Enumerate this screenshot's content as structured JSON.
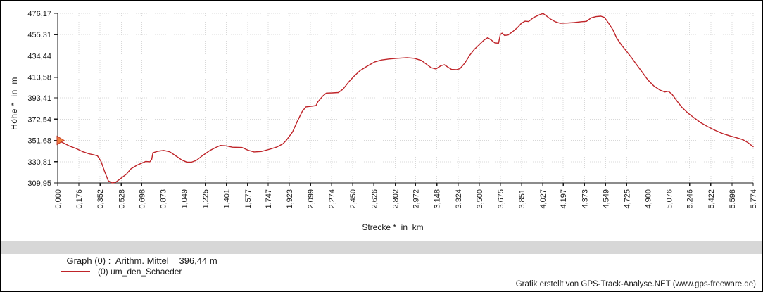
{
  "labels": {
    "y_axis_title": "Höhe *  in  m",
    "x_axis_title": "Strecke *  in  km",
    "stats_band_text": "Graph (0) :  Arithm. Mittel = 396,44 m",
    "legend_label": "(0) um_den_Schaeder",
    "credit_text": "Grafik erstellt von GPS-Track-Analyse.NET (www.gps-freeware.de)"
  },
  "colors": {
    "line": "#bf2429",
    "marker_fill": "#f1803c",
    "marker_stroke": "#c0392b",
    "grid": "#d8d8d8",
    "axis": "#1a1a1a",
    "tick_text": "#1a1a1a",
    "band_bg": "#d7d7d7"
  },
  "chart_data": {
    "type": "line",
    "title": "",
    "xlabel": "Strecke * in km",
    "ylabel": "Höhe * in m",
    "xlim": [
      0.0,
      5.774
    ],
    "ylim": [
      309.95,
      476.17
    ],
    "grid": true,
    "legend_position": "bottom-left",
    "x_ticks": [
      "0,000",
      "0,176",
      "0,352",
      "0,528",
      "0,698",
      "0,873",
      "1,049",
      "1,225",
      "1,401",
      "1,577",
      "1,747",
      "1,923",
      "2,099",
      "2,274",
      "2,450",
      "2,626",
      "2,802",
      "2,972",
      "3,148",
      "3,324",
      "3,500",
      "3,675",
      "3,851",
      "4,027",
      "4,197",
      "4,373",
      "4,549",
      "4,725",
      "4,900",
      "5,076",
      "5,246",
      "5,422",
      "5,598",
      "5,774"
    ],
    "y_ticks": [
      "476,17",
      "455,31",
      "434,44",
      "413,58",
      "393,41",
      "372,54",
      "351,68",
      "330,81",
      "309,95"
    ],
    "annotations": {
      "arithm_mittel": "396,44 m",
      "start_marker_at": [
        0.0,
        351.7
      ]
    },
    "series": [
      {
        "name": "(0) um_den_Schaeder",
        "points": [
          [
            0.0,
            351.7
          ],
          [
            0.05,
            349.0
          ],
          [
            0.1,
            346.0
          ],
          [
            0.15,
            343.8
          ],
          [
            0.21,
            340.5
          ],
          [
            0.26,
            338.5
          ],
          [
            0.3,
            337.5
          ],
          [
            0.33,
            336.5
          ],
          [
            0.36,
            331.0
          ],
          [
            0.39,
            321.0
          ],
          [
            0.42,
            312.0
          ],
          [
            0.45,
            310.0
          ],
          [
            0.48,
            310.5
          ],
          [
            0.52,
            314.0
          ],
          [
            0.57,
            318.5
          ],
          [
            0.61,
            324.0
          ],
          [
            0.66,
            327.5
          ],
          [
            0.7,
            329.5
          ],
          [
            0.73,
            331.0
          ],
          [
            0.765,
            330.7
          ],
          [
            0.78,
            333.0
          ],
          [
            0.79,
            339.5
          ],
          [
            0.83,
            341.0
          ],
          [
            0.88,
            341.8
          ],
          [
            0.93,
            340.5
          ],
          [
            0.98,
            336.5
          ],
          [
            1.03,
            332.5
          ],
          [
            1.07,
            330.4
          ],
          [
            1.11,
            330.3
          ],
          [
            1.15,
            332.0
          ],
          [
            1.2,
            336.5
          ],
          [
            1.26,
            341.5
          ],
          [
            1.31,
            344.6
          ],
          [
            1.35,
            346.7
          ],
          [
            1.4,
            346.3
          ],
          [
            1.45,
            345.0
          ],
          [
            1.53,
            344.7
          ],
          [
            1.58,
            342.0
          ],
          [
            1.63,
            340.4
          ],
          [
            1.69,
            340.8
          ],
          [
            1.76,
            343.0
          ],
          [
            1.82,
            345.2
          ],
          [
            1.87,
            348.3
          ],
          [
            1.9,
            352.0
          ],
          [
            1.95,
            360.0
          ],
          [
            1.99,
            370.5
          ],
          [
            2.03,
            380.0
          ],
          [
            2.06,
            384.5
          ],
          [
            2.11,
            385.2
          ],
          [
            2.145,
            385.8
          ],
          [
            2.16,
            389.5
          ],
          [
            2.2,
            395.0
          ],
          [
            2.23,
            398.0
          ],
          [
            2.28,
            398.2
          ],
          [
            2.33,
            398.6
          ],
          [
            2.37,
            402.0
          ],
          [
            2.42,
            409.5
          ],
          [
            2.46,
            414.5
          ],
          [
            2.51,
            420.0
          ],
          [
            2.57,
            424.5
          ],
          [
            2.63,
            428.5
          ],
          [
            2.69,
            430.5
          ],
          [
            2.75,
            431.5
          ],
          [
            2.82,
            432.2
          ],
          [
            2.9,
            432.8
          ],
          [
            2.96,
            432.2
          ],
          [
            3.02,
            430.0
          ],
          [
            3.06,
            426.5
          ],
          [
            3.1,
            423.0
          ],
          [
            3.14,
            421.7
          ],
          [
            3.18,
            424.8
          ],
          [
            3.21,
            425.8
          ],
          [
            3.24,
            423.5
          ],
          [
            3.27,
            421.3
          ],
          [
            3.31,
            421.0
          ],
          [
            3.34,
            422.0
          ],
          [
            3.38,
            427.5
          ],
          [
            3.42,
            435.0
          ],
          [
            3.46,
            441.0
          ],
          [
            3.5,
            445.5
          ],
          [
            3.54,
            450.0
          ],
          [
            3.57,
            452.3
          ],
          [
            3.6,
            450.0
          ],
          [
            3.63,
            447.2
          ],
          [
            3.66,
            447.0
          ],
          [
            3.675,
            455.5
          ],
          [
            3.69,
            456.8
          ],
          [
            3.71,
            454.5
          ],
          [
            3.74,
            455.0
          ],
          [
            3.78,
            458.5
          ],
          [
            3.82,
            462.5
          ],
          [
            3.85,
            466.5
          ],
          [
            3.88,
            468.5
          ],
          [
            3.91,
            468.2
          ],
          [
            3.95,
            472.0
          ],
          [
            4.0,
            474.8
          ],
          [
            4.03,
            476.0
          ],
          [
            4.06,
            473.5
          ],
          [
            4.09,
            470.8
          ],
          [
            4.13,
            468.0
          ],
          [
            4.17,
            466.5
          ],
          [
            4.23,
            466.7
          ],
          [
            4.29,
            467.2
          ],
          [
            4.35,
            468.0
          ],
          [
            4.39,
            468.4
          ],
          [
            4.43,
            471.8
          ],
          [
            4.47,
            473.0
          ],
          [
            4.51,
            473.4
          ],
          [
            4.54,
            472.2
          ],
          [
            4.57,
            467.2
          ],
          [
            4.61,
            460.0
          ],
          [
            4.64,
            452.2
          ],
          [
            4.68,
            445.3
          ],
          [
            4.72,
            439.5
          ],
          [
            4.76,
            433.5
          ],
          [
            4.8,
            427.0
          ],
          [
            4.85,
            419.0
          ],
          [
            4.9,
            411.0
          ],
          [
            4.95,
            405.0
          ],
          [
            5.0,
            401.0
          ],
          [
            5.04,
            399.1
          ],
          [
            5.07,
            399.8
          ],
          [
            5.1,
            397.0
          ],
          [
            5.14,
            390.5
          ],
          [
            5.18,
            384.4
          ],
          [
            5.23,
            378.7
          ],
          [
            5.28,
            374.1
          ],
          [
            5.34,
            369.0
          ],
          [
            5.4,
            364.9
          ],
          [
            5.46,
            361.4
          ],
          [
            5.52,
            358.4
          ],
          [
            5.58,
            356.1
          ],
          [
            5.63,
            354.5
          ],
          [
            5.69,
            352.3
          ],
          [
            5.73,
            349.5
          ],
          [
            5.774,
            345.5
          ]
        ]
      }
    ]
  }
}
